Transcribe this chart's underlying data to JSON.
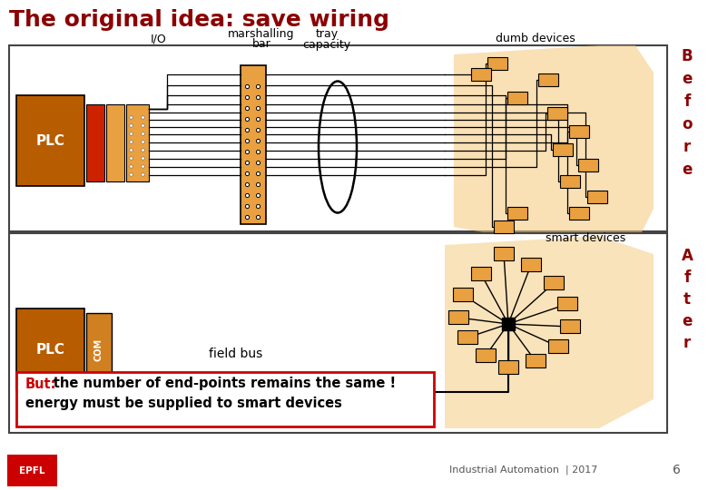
{
  "title": "The original idea: save wiring",
  "title_color": "#8b0000",
  "title_fontsize": 18,
  "bg_color": "#ffffff",
  "panel_border_color": "#444444",
  "orange_dark": "#b85c00",
  "orange_mid": "#d08020",
  "orange_light": "#e8a040",
  "orange_pale": "#f5c878",
  "red_color": "#cc0000",
  "footer_text": "Industrial Automation  | 2017",
  "footer_page": "6"
}
